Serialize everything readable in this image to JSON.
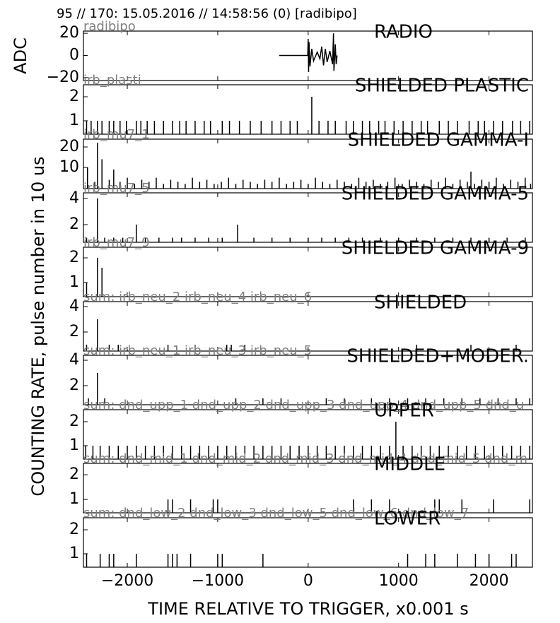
{
  "title": "95 // 170:   15.05.2016 // 14:58:56 (0)  [radibipo]",
  "y_label_counting": "COUNTING RATE,   pulse number in 10 us",
  "x_axis": {
    "label": "TIME RELATIVE TO TRIGGER,   x0.001 s",
    "xlim": [
      -2485,
      2480
    ],
    "xticks": [
      {
        "value": -2000,
        "label": "−2000"
      },
      {
        "value": -1000,
        "label": "−1000"
      },
      0,
      1000,
      2000
    ]
  },
  "chart_data": [
    {
      "type": "line",
      "title": "RADIO",
      "source": "radibipo",
      "y_label": "ADC",
      "ylim": [
        -22.7,
        22
      ],
      "yticks": [
        20,
        0,
        {
          "value": -20,
          "label": "−20"
        }
      ],
      "x": [
        -320,
        -50,
        -5,
        0,
        5,
        10,
        20,
        40,
        60,
        100,
        130,
        150,
        170,
        190,
        210,
        240,
        270,
        280,
        285,
        300,
        310,
        320
      ],
      "values": [
        0,
        0,
        0,
        15,
        -15,
        12,
        -10,
        6,
        -5,
        3,
        -3,
        8,
        -9,
        6,
        -6,
        4,
        -8,
        20,
        -14,
        10,
        -8,
        0
      ]
    },
    {
      "type": "spikes",
      "title": "SHIELDED PLASTIC",
      "source": "irb_plasti",
      "ylim": [
        0.44,
        2.5
      ],
      "yticks": [
        2,
        1
      ],
      "x": [
        -2450,
        -2400,
        -2330,
        -2280,
        -2200,
        -2150,
        -2080,
        -2010,
        -1900,
        -1850,
        -1780,
        -1700,
        -1600,
        -1500,
        -1420,
        -1350,
        -1250,
        -1150,
        -1080,
        -950,
        -870,
        -760,
        -640,
        -520,
        -400,
        -300,
        -200,
        -120,
        40,
        120,
        220,
        300,
        420,
        500,
        600,
        680,
        780,
        850,
        950,
        1050,
        1150,
        1250,
        1320,
        1450,
        1550,
        1650,
        1780,
        1880,
        1950,
        2050,
        2150,
        2260,
        2350,
        2450
      ],
      "values": [
        1,
        1,
        1,
        1,
        1,
        1,
        1,
        1,
        1,
        1,
        1,
        1,
        1,
        1,
        1,
        1,
        1,
        1,
        1,
        1,
        1,
        1,
        1,
        1,
        1,
        1,
        1,
        1,
        2,
        1,
        1,
        1,
        1,
        1,
        1,
        1,
        1,
        1,
        1,
        1,
        1,
        1,
        1,
        1,
        1,
        1,
        1,
        1,
        1,
        1,
        1,
        1,
        1,
        1
      ]
    },
    {
      "type": "spikes",
      "title": "SHIELDED GAMMA-I",
      "source": "irb_mu7_1",
      "ylim": [
        -0.3,
        23.8
      ],
      "yticks": [
        20,
        10
      ],
      "x": [
        -2440,
        -2360,
        -2330,
        -2280,
        -2200,
        -2150,
        -2080,
        -2000,
        -1920,
        -1840,
        -1760,
        -1680,
        -1600,
        -1520,
        -1440,
        -1360,
        -1280,
        -1200,
        -1120,
        -1040,
        -960,
        -880,
        -800,
        -720,
        -640,
        -560,
        -480,
        -400,
        -320,
        -240,
        -160,
        -80,
        0,
        80,
        160,
        240,
        320,
        400,
        480,
        560,
        640,
        720,
        800,
        880,
        960,
        1040,
        1120,
        1200,
        1280,
        1360,
        1440,
        1520,
        1600,
        1680,
        1760,
        1800,
        1840,
        1920,
        2000,
        2080,
        2160,
        2240,
        2320,
        2400,
        2460
      ],
      "values": [
        10,
        3,
        22,
        14,
        4,
        9,
        3,
        5,
        2,
        4,
        3,
        5,
        2,
        4,
        3,
        2,
        5,
        3,
        4,
        2,
        3,
        5,
        2,
        4,
        3,
        2,
        4,
        3,
        5,
        2,
        3,
        4,
        2,
        5,
        3,
        2,
        4,
        3,
        2,
        5,
        3,
        4,
        2,
        3,
        5,
        2,
        4,
        3,
        2,
        4,
        3,
        5,
        2,
        4,
        3,
        8,
        2,
        4,
        3,
        5,
        2,
        4,
        3,
        5,
        2
      ]
    },
    {
      "type": "spikes",
      "title": "SHIELDED GAMMA-5",
      "source": "irb_mu7_5",
      "ylim": [
        0.65,
        4.43
      ],
      "yticks": [
        4,
        2
      ],
      "x": [
        -2450,
        -2330,
        -2250,
        -2150,
        -2050,
        -1900,
        -1800,
        -1650,
        -1500,
        -1400,
        -1250,
        -1100,
        -950,
        -780,
        -600,
        -400,
        -200,
        0,
        150,
        300,
        450,
        600,
        800,
        1000,
        1200,
        1400,
        1600,
        1800,
        2000,
        2200,
        2400
      ],
      "values": [
        1,
        4,
        1,
        1,
        1,
        2,
        1,
        1,
        1,
        1,
        1,
        1,
        1,
        2,
        1,
        1,
        1,
        1,
        1,
        1,
        1,
        1,
        1,
        1,
        1,
        1,
        1,
        1,
        1,
        1,
        1
      ]
    },
    {
      "type": "spikes",
      "title": "SHIELDED GAMMA-9",
      "source": "irb_mu7_9",
      "ylim": [
        0.43,
        2.43
      ],
      "yticks": [
        2,
        1
      ],
      "x": [
        -2450,
        -2330,
        -2280
      ],
      "values": [
        1,
        2,
        1.6
      ]
    },
    {
      "type": "spikes",
      "title": "SHIELDED",
      "source": "sum: irb_neu_2 irb_neu_4 irb_neu_6",
      "ylim": [
        0.5,
        4.39
      ],
      "yticks": [
        4,
        2
      ],
      "x": [
        -2450,
        -2330,
        -2200,
        -2100,
        -1550,
        -1250,
        -900,
        -850,
        -700,
        1200,
        1800,
        2300
      ],
      "values": [
        1,
        3,
        1,
        1,
        1,
        1,
        1,
        1,
        1,
        1,
        1,
        1
      ]
    },
    {
      "type": "spikes",
      "title": "SHIELDED+MODER.",
      "source": "sum: irb_neu_1 irb_neu_3 irb_neu_5",
      "ylim": [
        0.5,
        4.39
      ],
      "yticks": [
        4,
        2
      ],
      "x": [
        -2430,
        -2330,
        -2250,
        -800,
        -500,
        -300,
        200,
        400,
        700,
        900,
        1100,
        1300,
        1500,
        1700,
        1900,
        2100,
        2300,
        2450
      ],
      "values": [
        1,
        3,
        1,
        1,
        1,
        1,
        1,
        1,
        1,
        1,
        1,
        1,
        1,
        1,
        1,
        1,
        1,
        1
      ]
    },
    {
      "type": "spikes",
      "title": "UPPER",
      "source": "sum: dnd_upp_1 dnd_upp_2 dnd_upp_3 dnd_upp_4 dnd_upp_5 dnd_u",
      "ylim": [
        0.44,
        2.5
      ],
      "yticks": [
        2,
        1
      ],
      "x": [
        -2460,
        -2380,
        -2300,
        -2200,
        -2100,
        -2000,
        -1900,
        -1800,
        -1700,
        -1600,
        -1500,
        -1400,
        -1300,
        -1200,
        -1100,
        -1000,
        -900,
        -800,
        -700,
        -600,
        -500,
        -400,
        -300,
        -200,
        -100,
        0,
        100,
        200,
        300,
        400,
        500,
        600,
        700,
        800,
        900,
        970,
        1050,
        1150,
        1250,
        1350,
        1450,
        1550,
        1650,
        1750,
        1850,
        1950,
        2050,
        2150,
        2250,
        2350,
        2450
      ],
      "values": [
        1,
        1,
        1,
        1,
        1,
        1,
        1,
        1,
        1,
        1,
        1,
        1,
        1,
        1,
        1,
        1,
        1,
        1,
        1,
        1,
        1,
        1,
        1,
        1,
        1,
        1,
        1,
        1,
        1,
        1,
        1,
        1,
        1,
        1,
        1,
        2,
        1,
        1,
        1,
        1,
        1,
        1,
        1,
        1,
        1,
        1,
        1,
        1,
        1,
        1,
        1
      ]
    },
    {
      "type": "spikes",
      "title": "MIDDLE",
      "source": "sum: dnd_mid_1 dnd_mid_2 dnd_mid_3 dnd_mid_4 dnd_mid_5 dnd_m",
      "ylim": [
        0.46,
        2.46
      ],
      "yticks": [
        2,
        1
      ],
      "x": [
        -1550,
        -1500,
        -1300,
        -1050,
        -1000,
        500,
        700,
        900,
        1400,
        1450,
        1700,
        2050,
        2450
      ],
      "values": [
        1,
        1,
        1,
        1,
        1,
        1,
        1,
        1,
        1,
        1,
        1,
        1,
        1
      ]
    },
    {
      "type": "spikes",
      "title": "LOWER",
      "source": "sum: dnd_low_2 dnd_low_3 dnd_low_5 dnd_low_6 dnd_low_7",
      "ylim": [
        0.44,
        2.5
      ],
      "yticks": [
        2,
        1
      ],
      "x": [
        -2450,
        -2300,
        -2200,
        -2150,
        -1900,
        -1550,
        -1500,
        -1450,
        -1300,
        -1000,
        -950,
        -500,
        1100,
        1300,
        1400,
        1650,
        1850,
        2000,
        2250,
        2300
      ],
      "values": [
        1,
        1,
        1,
        1,
        1,
        1,
        1,
        1,
        1,
        1,
        1,
        1,
        1,
        1,
        1,
        1,
        1,
        1,
        1,
        1
      ]
    }
  ]
}
